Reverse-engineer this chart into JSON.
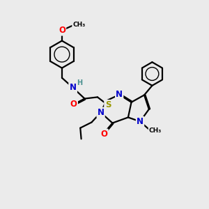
{
  "background_color": "#ebebeb",
  "atom_colors": {
    "C": "#000000",
    "N": "#0000cc",
    "O": "#ff0000",
    "S": "#999900",
    "H": "#4a9090"
  },
  "bond_color": "#000000",
  "bond_width": 1.6,
  "font_size_atom": 8.5,
  "font_size_small": 7.0
}
